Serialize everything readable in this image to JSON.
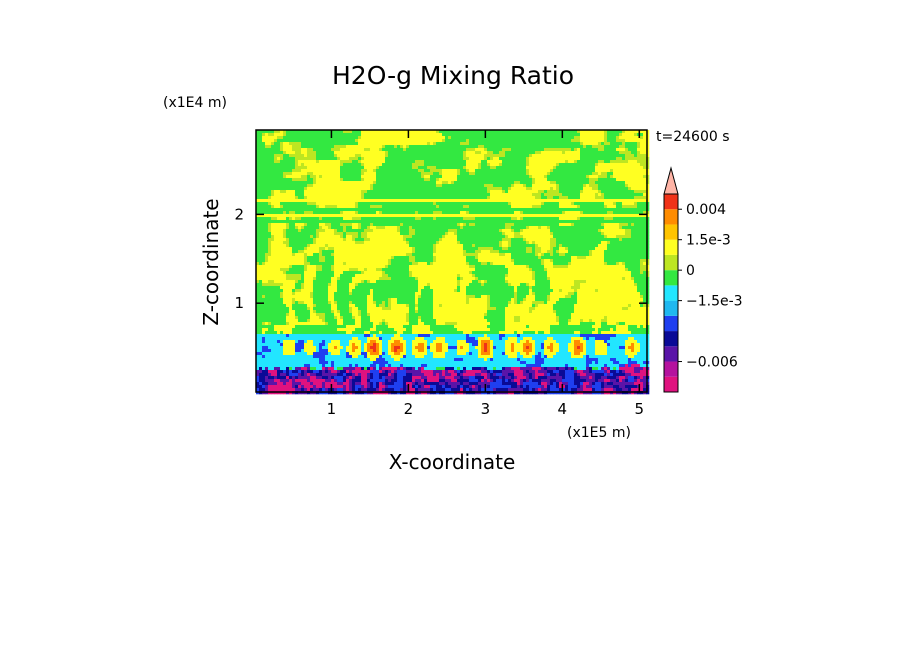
{
  "chart_data": {
    "type": "heatmap",
    "title": "H2O-g Mixing Ratio",
    "xlabel": "X-coordinate",
    "ylabel": "Z-coordinate",
    "x_scale_label": "(x1E5 m)",
    "y_scale_label": "(x1E4 m)",
    "time_label": "t=24600 s",
    "xlim": [
      0.02,
      5.1
    ],
    "ylim": [
      0.0,
      2.95
    ],
    "xticks": [
      1,
      2,
      3,
      4,
      5
    ],
    "yticks": [
      1,
      2
    ],
    "colorbar": {
      "colors": [
        "#e0127f",
        "#b5129e",
        "#5a14a8",
        "#0a0a96",
        "#1f3ff0",
        "#1fb8f0",
        "#22e6ff",
        "#33e841",
        "#bde622",
        "#ffff22",
        "#ffc400",
        "#ff8c00",
        "#f03218",
        "#ffb4a6"
      ],
      "labels": [
        {
          "text": "0.004",
          "value": 0.004
        },
        {
          "text": "1.5e-3",
          "value": 0.0015
        },
        {
          "text": "0",
          "value": 0.0
        },
        {
          "text": "−1.5e-3",
          "value": -0.0015
        },
        {
          "text": "−0.006",
          "value": -0.006
        }
      ]
    },
    "fields": {
      "upper_band_z": [
        1.85,
        2.95
      ],
      "stripes_z": [
        2.15,
        2.05,
        1.98,
        1.92
      ],
      "boundary_layer_top_z": 0.75,
      "cyan_layer_z": [
        0.3,
        0.65
      ],
      "plumes": [
        {
          "x": 0.45,
          "top": 0.85,
          "strength": 0.6
        },
        {
          "x": 0.72,
          "top": 1.0,
          "strength": 0.5
        },
        {
          "x": 1.05,
          "top": 1.2,
          "strength": 0.6
        },
        {
          "x": 1.3,
          "top": 0.95,
          "strength": 0.7
        },
        {
          "x": 1.55,
          "top": 0.8,
          "strength": 1.0
        },
        {
          "x": 1.85,
          "top": 0.7,
          "strength": 1.0
        },
        {
          "x": 2.15,
          "top": 1.1,
          "strength": 0.8
        },
        {
          "x": 2.4,
          "top": 0.9,
          "strength": 0.8
        },
        {
          "x": 2.7,
          "top": 1.3,
          "strength": 0.6
        },
        {
          "x": 3.0,
          "top": 0.75,
          "strength": 1.0
        },
        {
          "x": 3.35,
          "top": 1.2,
          "strength": 0.7
        },
        {
          "x": 3.55,
          "top": 0.9,
          "strength": 0.9
        },
        {
          "x": 3.85,
          "top": 1.15,
          "strength": 0.7
        },
        {
          "x": 4.2,
          "top": 0.8,
          "strength": 0.9
        },
        {
          "x": 4.5,
          "top": 1.35,
          "strength": 0.6
        },
        {
          "x": 4.9,
          "top": 1.0,
          "strength": 0.7
        }
      ]
    }
  }
}
